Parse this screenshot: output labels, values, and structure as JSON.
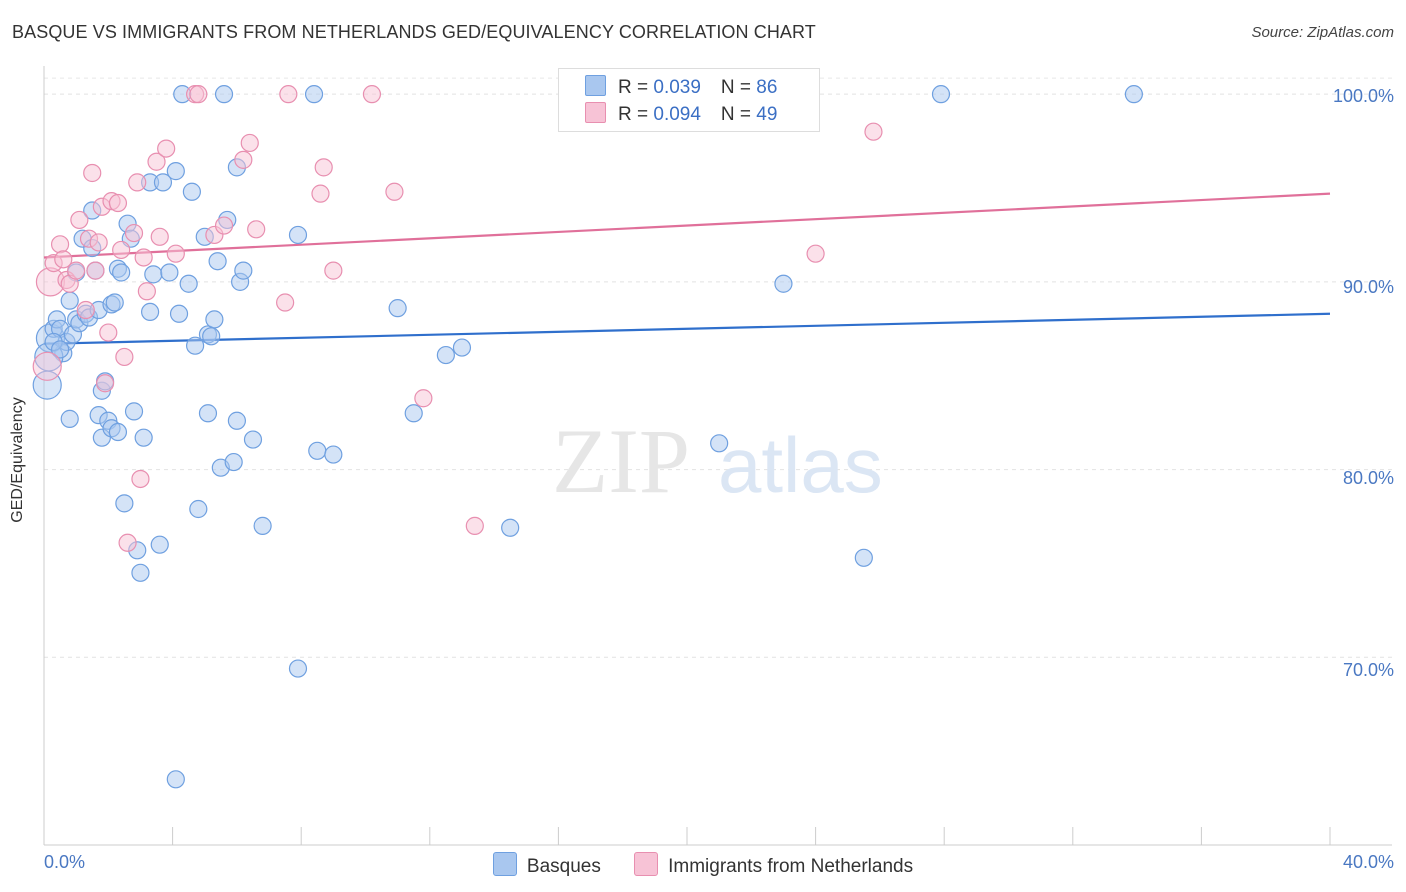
{
  "chart_data": {
    "type": "scatter",
    "title": "BASQUE VS IMMIGRANTS FROM NETHERLANDS GED/EQUIVALENCY CORRELATION CHART",
    "source": "Source: ZipAtlas.com",
    "ylabel": "GED/Equivalency",
    "xlabel": "",
    "xlim": [
      0,
      40
    ],
    "ylim": [
      60,
      101.5
    ],
    "ytick_values": [
      70,
      80,
      90,
      100
    ],
    "ytick_labels": [
      "70.0%",
      "80.0%",
      "90.0%",
      "100.0%"
    ],
    "x_min_label": "0.0%",
    "x_max_label": "40.0%",
    "watermark": {
      "zip": "ZIP",
      "atlas": "atlas"
    },
    "legend": {
      "rows": [
        {
          "r_label": "R = ",
          "r_value": "0.039",
          "n_label": "N = ",
          "n_value": "86"
        },
        {
          "r_label": "R = ",
          "r_value": "0.094",
          "n_label": "N = ",
          "n_value": "49"
        }
      ]
    },
    "series": [
      {
        "name": "Basques",
        "color": "#6fa0e0",
        "fill": "#a9c7ef",
        "line_color": "#2f6fcc",
        "trend": {
          "x": [
            0,
            40
          ],
          "y": [
            86.7,
            88.3
          ]
        },
        "points": [
          [
            0.1,
            84.5
          ],
          [
            0.2,
            87.0
          ],
          [
            0.3,
            87.5
          ],
          [
            0.4,
            88.0
          ],
          [
            0.5,
            87.5
          ],
          [
            0.6,
            86.2
          ],
          [
            0.7,
            86.8
          ],
          [
            0.8,
            89.0
          ],
          [
            0.8,
            82.7
          ],
          [
            0.9,
            87.2
          ],
          [
            1.0,
            88.0
          ],
          [
            1.0,
            90.5
          ],
          [
            1.1,
            87.8
          ],
          [
            1.2,
            92.3
          ],
          [
            1.3,
            88.3
          ],
          [
            1.4,
            88.1
          ],
          [
            1.5,
            91.8
          ],
          [
            1.5,
            93.8
          ],
          [
            1.6,
            90.6
          ],
          [
            1.7,
            88.5
          ],
          [
            1.7,
            82.9
          ],
          [
            1.8,
            81.7
          ],
          [
            1.8,
            84.2
          ],
          [
            1.9,
            84.7
          ],
          [
            2.0,
            82.6
          ],
          [
            2.1,
            82.2
          ],
          [
            2.1,
            88.8
          ],
          [
            2.2,
            88.9
          ],
          [
            2.3,
            82.0
          ],
          [
            2.3,
            90.7
          ],
          [
            2.4,
            90.5
          ],
          [
            2.5,
            78.2
          ],
          [
            2.6,
            93.1
          ],
          [
            2.7,
            92.3
          ],
          [
            2.8,
            83.1
          ],
          [
            2.9,
            75.7
          ],
          [
            3.0,
            74.5
          ],
          [
            3.1,
            81.7
          ],
          [
            3.3,
            95.3
          ],
          [
            3.3,
            88.4
          ],
          [
            3.4,
            90.4
          ],
          [
            3.6,
            76.0
          ],
          [
            3.7,
            95.3
          ],
          [
            3.9,
            90.5
          ],
          [
            4.1,
            63.5
          ],
          [
            4.1,
            95.9
          ],
          [
            4.2,
            88.3
          ],
          [
            4.3,
            100.0
          ],
          [
            4.5,
            89.9
          ],
          [
            4.6,
            94.8
          ],
          [
            4.7,
            86.6
          ],
          [
            4.8,
            77.9
          ],
          [
            5.0,
            92.4
          ],
          [
            5.1,
            83.0
          ],
          [
            5.1,
            87.2
          ],
          [
            5.2,
            87.1
          ],
          [
            5.3,
            88.0
          ],
          [
            5.4,
            91.1
          ],
          [
            5.5,
            80.1
          ],
          [
            5.6,
            100.0
          ],
          [
            5.7,
            93.3
          ],
          [
            5.9,
            80.4
          ],
          [
            6.0,
            82.6
          ],
          [
            6.0,
            96.1
          ],
          [
            6.1,
            90.0
          ],
          [
            6.2,
            90.6
          ],
          [
            6.5,
            81.6
          ],
          [
            6.8,
            77.0
          ],
          [
            7.9,
            92.5
          ],
          [
            7.9,
            69.4
          ],
          [
            8.4,
            100.0
          ],
          [
            8.5,
            81.0
          ],
          [
            9.0,
            80.8
          ],
          [
            11.0,
            88.6
          ],
          [
            11.5,
            83.0
          ],
          [
            12.5,
            86.1
          ],
          [
            13.0,
            86.5
          ],
          [
            14.5,
            76.9
          ],
          [
            21.0,
            81.4
          ],
          [
            23.0,
            89.9
          ],
          [
            25.5,
            75.3
          ],
          [
            27.9,
            100.0
          ],
          [
            33.9,
            100.0
          ],
          [
            0.15,
            86.0
          ],
          [
            0.3,
            86.8
          ],
          [
            0.5,
            86.4
          ]
        ]
      },
      {
        "name": "Immigrants from Netherlands",
        "color": "#e88fb0",
        "fill": "#f7c3d6",
        "line_color": "#e0709a",
        "trend": {
          "x": [
            0,
            40
          ],
          "y": [
            91.3,
            94.7
          ]
        },
        "points": [
          [
            0.1,
            85.5
          ],
          [
            0.2,
            90.0
          ],
          [
            0.3,
            91.0
          ],
          [
            0.5,
            92.0
          ],
          [
            0.6,
            91.2
          ],
          [
            0.7,
            90.1
          ],
          [
            0.8,
            89.9
          ],
          [
            1.0,
            90.6
          ],
          [
            1.1,
            93.3
          ],
          [
            1.3,
            88.5
          ],
          [
            1.4,
            92.3
          ],
          [
            1.5,
            95.8
          ],
          [
            1.6,
            90.6
          ],
          [
            1.7,
            92.1
          ],
          [
            1.8,
            94.0
          ],
          [
            1.9,
            84.6
          ],
          [
            2.0,
            87.3
          ],
          [
            2.1,
            94.3
          ],
          [
            2.3,
            94.2
          ],
          [
            2.4,
            91.7
          ],
          [
            2.5,
            86.0
          ],
          [
            2.6,
            76.1
          ],
          [
            2.8,
            92.6
          ],
          [
            2.9,
            95.3
          ],
          [
            3.0,
            79.5
          ],
          [
            3.1,
            91.3
          ],
          [
            3.2,
            89.5
          ],
          [
            3.5,
            96.4
          ],
          [
            3.6,
            92.4
          ],
          [
            3.8,
            97.1
          ],
          [
            4.1,
            91.5
          ],
          [
            4.7,
            100.0
          ],
          [
            4.8,
            100.0
          ],
          [
            5.3,
            92.5
          ],
          [
            5.6,
            93.0
          ],
          [
            6.2,
            96.5
          ],
          [
            6.4,
            97.4
          ],
          [
            6.6,
            92.8
          ],
          [
            7.5,
            88.9
          ],
          [
            7.6,
            100.0
          ],
          [
            8.6,
            94.7
          ],
          [
            8.7,
            96.1
          ],
          [
            9.0,
            90.6
          ],
          [
            10.2,
            100.0
          ],
          [
            10.9,
            94.8
          ],
          [
            11.8,
            83.8
          ],
          [
            13.4,
            77.0
          ],
          [
            24.0,
            91.5
          ],
          [
            25.8,
            98.0
          ]
        ]
      }
    ]
  },
  "bottom_legend": [
    "Basques",
    "Immigrants from Netherlands"
  ]
}
